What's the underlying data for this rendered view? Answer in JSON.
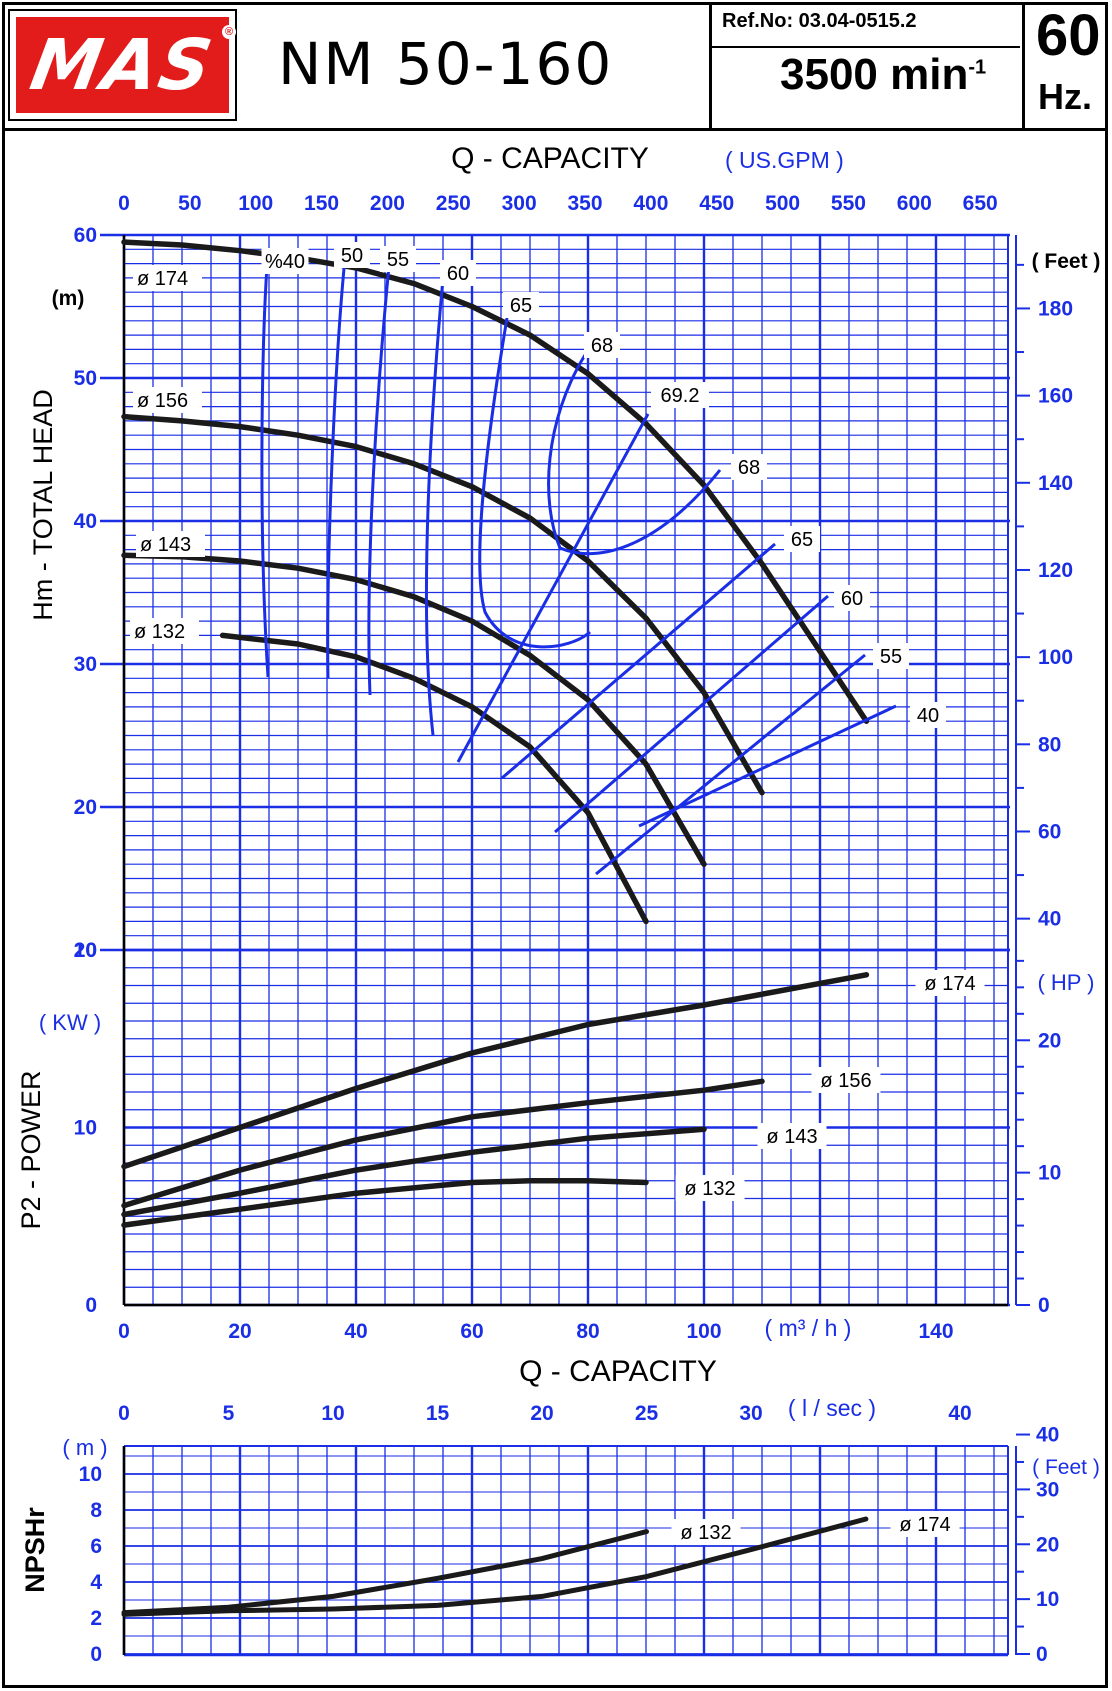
{
  "header": {
    "brand": "MAS",
    "registered": "®",
    "model": "NM 50-160",
    "ref_no": "Ref.No: 03.04-0515.2",
    "speed": "3500 min",
    "speed_exp": "-1",
    "frequency": "60",
    "frequency_unit": "Hz."
  },
  "colors": {
    "grid": "#1a2ee6",
    "curve": "#1a1a1a",
    "logo": "#e21b1b"
  },
  "labels": {
    "q_capacity_top": "Q - CAPACITY",
    "usgpm_unit": "( US.GPM )",
    "head_axis": "Hm - TOTAL HEAD",
    "m_unit": "(m)",
    "feet_unit": "( Feet )",
    "power_axis": "P2 - POWER",
    "kw_unit": "( KW )",
    "hp_unit": "( HP )",
    "m3h_unit": "( m³ / h )",
    "q_capacity_mid": "Q - CAPACITY",
    "lsec_unit": "( l / sec )",
    "npsh_axis": "NPSHr",
    "npsh_m_unit": "( m )",
    "npsh_feet_unit": "( Feet )"
  },
  "chart_data": [
    {
      "type": "line",
      "title": "Hm - TOTAL HEAD",
      "xlabel": "( m³ / h )",
      "ylabel": "(m)",
      "xlim": [
        0,
        150
      ],
      "ylim": [
        10,
        60
      ],
      "x_ticks": [
        "0",
        "20",
        "40",
        "60",
        "80",
        "100",
        "140"
      ],
      "y_ticks": [
        "10",
        "20",
        "30",
        "40",
        "50",
        "60"
      ],
      "gpm_ticks": [
        "0",
        "50",
        "100",
        "150",
        "200",
        "250",
        "300",
        "350",
        "400",
        "450",
        "500",
        "550",
        "600",
        "650"
      ],
      "feet_ticks": [
        "40",
        "60",
        "80",
        "100",
        "120",
        "140",
        "160",
        "180"
      ],
      "series": [
        {
          "name": "ø 174",
          "x": [
            0,
            10,
            20,
            30,
            40,
            50,
            60,
            70,
            80,
            90,
            100,
            110,
            128
          ],
          "y": [
            59.5,
            59.3,
            58.9,
            58.4,
            57.7,
            56.6,
            55,
            53,
            50.3,
            46.8,
            42.5,
            37,
            26
          ]
        },
        {
          "name": "ø 156",
          "x": [
            0,
            10,
            20,
            30,
            40,
            50,
            60,
            70,
            80,
            90,
            100,
            110
          ],
          "y": [
            47.3,
            47,
            46.6,
            46,
            45.2,
            44,
            42.4,
            40.2,
            37.2,
            33.2,
            28,
            21
          ]
        },
        {
          "name": "ø 143",
          "x": [
            0,
            10,
            20,
            30,
            40,
            50,
            60,
            70,
            80,
            90,
            100
          ],
          "y": [
            37.6,
            37.5,
            37.2,
            36.7,
            35.9,
            34.7,
            33,
            30.6,
            27.5,
            23,
            16
          ]
        },
        {
          "name": "ø 132",
          "x": [
            17,
            30,
            40,
            50,
            60,
            70,
            80,
            90
          ],
          "y": [
            32,
            31.4,
            30.5,
            29,
            27,
            24.2,
            19.6,
            12
          ]
        }
      ],
      "efficiency_labels": [
        "%40",
        "50",
        "55",
        "60",
        "65",
        "68",
        "69.2",
        "68",
        "65",
        "60",
        "55",
        "40"
      ],
      "curve_labels": [
        "ø 174",
        "ø 156",
        "ø 143",
        "ø 132"
      ]
    },
    {
      "type": "line",
      "title": "P2 - POWER",
      "xlabel": "( m³ / h )",
      "ylabel": "( KW )",
      "xlim": [
        0,
        150
      ],
      "ylim": [
        0,
        20
      ],
      "y_ticks": [
        "0",
        "10",
        "20"
      ],
      "hp_ticks": [
        "0",
        "10",
        "20"
      ],
      "series": [
        {
          "name": "ø 174",
          "x": [
            0,
            20,
            40,
            60,
            80,
            100,
            128
          ],
          "y": [
            7.8,
            10,
            12.2,
            14.2,
            15.8,
            16.9,
            18.6
          ]
        },
        {
          "name": "ø 156",
          "x": [
            0,
            20,
            40,
            60,
            80,
            100,
            110
          ],
          "y": [
            5.6,
            7.6,
            9.3,
            10.6,
            11.4,
            12.1,
            12.6
          ]
        },
        {
          "name": "ø 143",
          "x": [
            0,
            20,
            40,
            60,
            80,
            100
          ],
          "y": [
            5.1,
            6.3,
            7.6,
            8.6,
            9.4,
            9.9
          ]
        },
        {
          "name": "ø 132",
          "x": [
            0,
            20,
            40,
            60,
            70,
            80,
            90
          ],
          "y": [
            4.5,
            5.4,
            6.3,
            6.9,
            7.0,
            7.0,
            6.9
          ]
        }
      ],
      "curve_labels": [
        "ø 174",
        "ø 156",
        "ø 143",
        "ø 132"
      ]
    },
    {
      "type": "line",
      "title": "NPSHr",
      "xlabel": "( l / sec )",
      "ylabel": "( m )",
      "xlim": [
        0,
        42
      ],
      "ylim": [
        0,
        12
      ],
      "x_ticks": [
        "0",
        "5",
        "10",
        "15",
        "20",
        "25",
        "30",
        "40"
      ],
      "y_ticks": [
        "0",
        "2",
        "4",
        "6",
        "8",
        "10"
      ],
      "feet_ticks": [
        "0",
        "10",
        "20",
        "30",
        "40"
      ],
      "series": [
        {
          "name": "ø 132",
          "x": [
            0,
            5,
            10,
            15,
            20,
            25
          ],
          "y": [
            2.3,
            2.6,
            3.2,
            4.2,
            5.3,
            6.8
          ]
        },
        {
          "name": "ø 174",
          "x": [
            0,
            5,
            10,
            15,
            20,
            25,
            30,
            35.5
          ],
          "y": [
            2.2,
            2.4,
            2.5,
            2.7,
            3.2,
            4.3,
            5.8,
            7.5
          ]
        }
      ],
      "curve_labels": [
        "ø 132",
        "ø 174"
      ]
    }
  ]
}
